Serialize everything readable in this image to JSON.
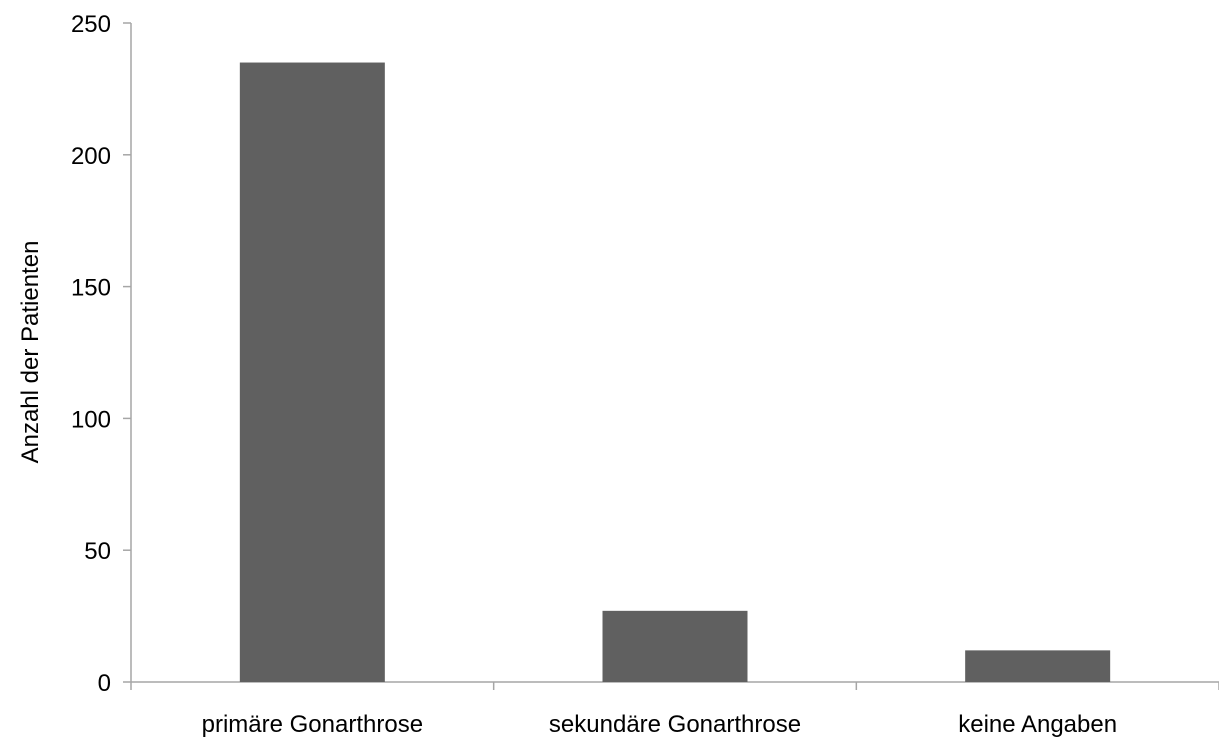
{
  "chart_data": {
    "type": "bar",
    "title": "",
    "xlabel": "",
    "ylabel": "Anzahl der Patienten",
    "categories": [
      "primäre Gonarthrose",
      "sekundäre Gonarthrose",
      "keine Angaben"
    ],
    "values": [
      235,
      27,
      12
    ],
    "ylim": [
      0,
      250
    ],
    "yticks": [
      0,
      50,
      100,
      150,
      200,
      250
    ],
    "grid": false,
    "legend": "none",
    "colors": {
      "bar": "#606060",
      "axis": "#a6a6a6",
      "text": "#000000"
    }
  }
}
